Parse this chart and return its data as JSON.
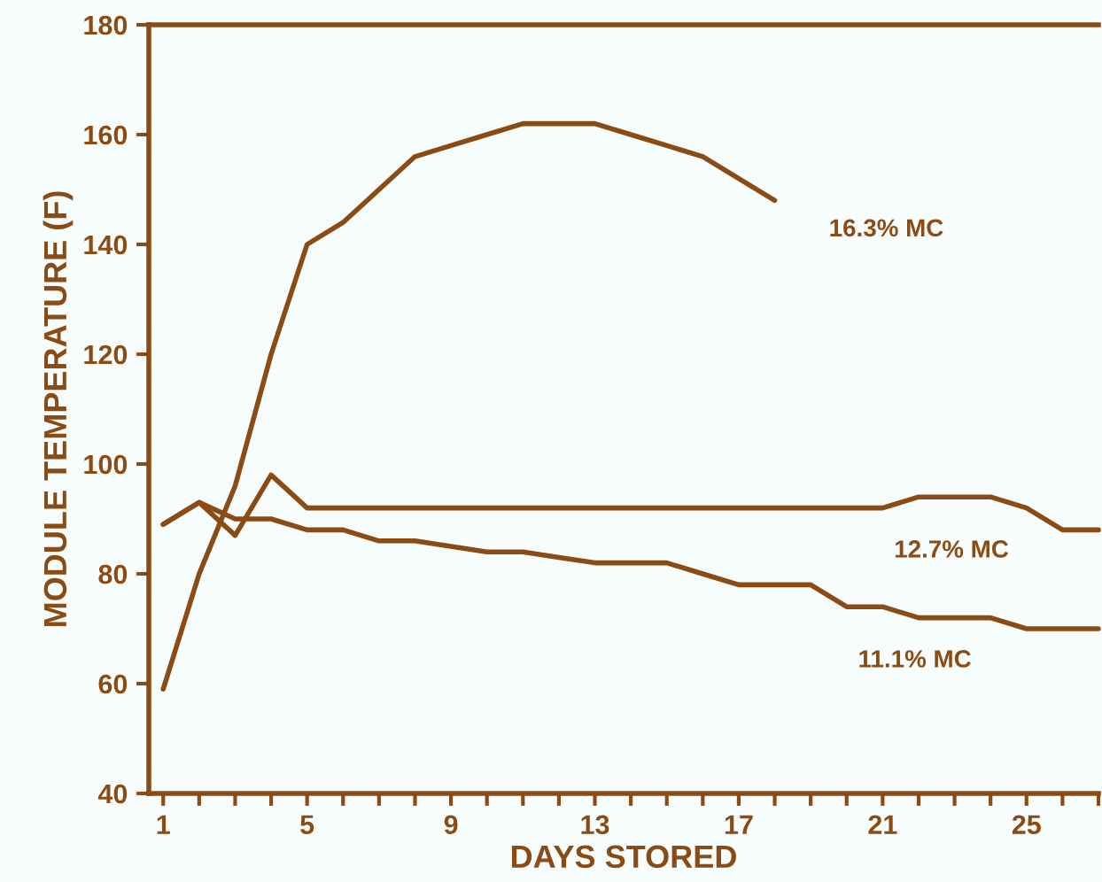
{
  "chart_data": {
    "type": "line",
    "xlabel": "DAYS STORED",
    "ylabel": "MODULE TEMPERATURE (F)",
    "xlim": [
      0.6,
      27
    ],
    "ylim": [
      40,
      180
    ],
    "xticks": [
      1,
      {
        "value": 2,
        "label": null
      },
      {
        "value": 3,
        "label": null
      },
      {
        "value": 4,
        "label": null
      },
      5,
      {
        "value": 6,
        "label": null
      },
      {
        "value": 7,
        "label": null
      },
      {
        "value": 8,
        "label": null
      },
      9,
      {
        "value": 10,
        "label": null
      },
      {
        "value": 11,
        "label": null
      },
      {
        "value": 12,
        "label": null
      },
      13,
      {
        "value": 14,
        "label": null
      },
      {
        "value": 15,
        "label": null
      },
      {
        "value": 16,
        "label": null
      },
      17,
      {
        "value": 18,
        "label": null
      },
      {
        "value": 19,
        "label": null
      },
      {
        "value": 20,
        "label": null
      },
      21,
      {
        "value": 22,
        "label": null
      },
      {
        "value": 23,
        "label": null
      },
      {
        "value": 24,
        "label": null
      },
      25,
      {
        "value": 26,
        "label": null
      },
      {
        "value": 27,
        "label": null
      }
    ],
    "yticks": [
      40,
      60,
      80,
      100,
      120,
      140,
      160,
      180
    ],
    "grid": false,
    "legend": false,
    "marker": "none",
    "line_style": "solid",
    "series": [
      {
        "name": "16.3% MC",
        "color": "#8a4b14",
        "x": [
          1,
          2,
          3,
          4,
          5,
          6,
          7,
          8,
          9,
          10,
          11,
          12,
          13,
          14,
          15,
          16,
          17,
          18
        ],
        "values": [
          59,
          80,
          96,
          120,
          140,
          144,
          150,
          156,
          158,
          160,
          162,
          162,
          162,
          160,
          158,
          156,
          152,
          148
        ]
      },
      {
        "name": "12.7% MC",
        "color": "#8a4b14",
        "x": [
          1,
          2,
          3,
          4,
          5,
          6,
          7,
          8,
          9,
          10,
          11,
          12,
          13,
          14,
          15,
          16,
          17,
          18,
          19,
          20,
          21,
          22,
          23,
          24,
          25,
          26,
          27
        ],
        "values": [
          89,
          93,
          87,
          98,
          92,
          92,
          92,
          92,
          92,
          92,
          92,
          92,
          92,
          92,
          92,
          92,
          92,
          92,
          92,
          92,
          92,
          94,
          94,
          94,
          92,
          88,
          88
        ]
      },
      {
        "name": "11.1% MC",
        "color": "#8a4b14",
        "x": [
          1,
          2,
          3,
          4,
          5,
          6,
          7,
          8,
          9,
          10,
          11,
          12,
          13,
          14,
          15,
          16,
          17,
          18,
          19,
          20,
          21,
          22,
          23,
          24,
          25,
          26,
          27
        ],
        "values": [
          89,
          93,
          90,
          90,
          88,
          88,
          86,
          86,
          85,
          84,
          84,
          83,
          82,
          82,
          82,
          80,
          78,
          78,
          78,
          74,
          74,
          72,
          72,
          72,
          70,
          70,
          70
        ]
      }
    ]
  }
}
